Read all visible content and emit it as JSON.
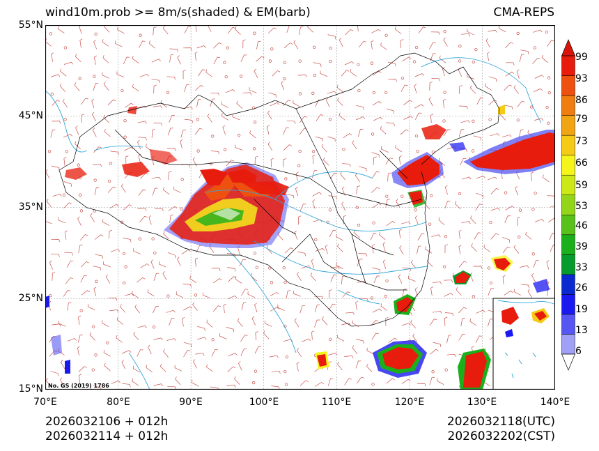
{
  "title": {
    "left": "wind10m.prob >= 8m/s(shaded) & EM(barb)",
    "right": "CMA-REPS"
  },
  "map": {
    "lon_range": [
      70,
      140
    ],
    "lat_range": [
      15,
      55
    ],
    "lat_labels": [
      "55°N",
      "45°N",
      "35°N",
      "25°N",
      "15°N"
    ],
    "lon_labels": [
      "70°E",
      "80°E",
      "90°E",
      "100°E",
      "110°E",
      "120°E",
      "130°E",
      "140°E"
    ],
    "review_number": "No. GS (2019) 1786",
    "colors": {
      "barb": "#c8504a",
      "rivers": "#35a7d8",
      "borders": "#000000",
      "grid": "#9a9a9a"
    }
  },
  "colorbar": {
    "labels": [
      "6",
      "13",
      "19",
      "26",
      "33",
      "39",
      "46",
      "53",
      "59",
      "66",
      "73",
      "79",
      "86",
      "93",
      "99"
    ],
    "colors": [
      "#a0a0f6",
      "#5656f2",
      "#1a1af0",
      "#0a2ad0",
      "#079a2c",
      "#1bb01b",
      "#58c21a",
      "#93d51a",
      "#cde817",
      "#f5f51c",
      "#f6cb16",
      "#f2a514",
      "#f07d10",
      "#ee5010",
      "#e81c0c",
      "#d9140a"
    ]
  },
  "time": {
    "left_line1": "2026032106  +  012h",
    "left_line2": "2026032114  +  012h",
    "right_line1": "2026032118(UTC)",
    "right_line2": "2026032202(CST)"
  }
}
